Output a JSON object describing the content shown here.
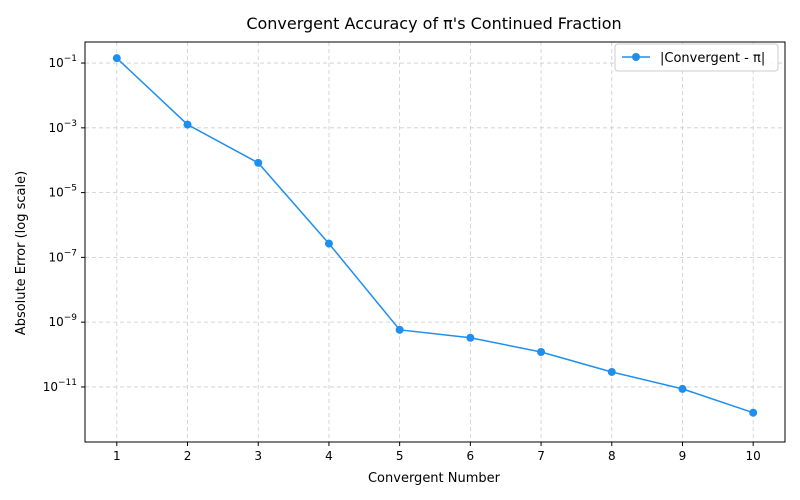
{
  "chart_data": {
    "type": "line",
    "title": "Convergent Accuracy of π's Continued Fraction",
    "xlabel": "Convergent Number",
    "ylabel": "Absolute Error (log scale)",
    "yscale": "log",
    "grid": true,
    "legend_position": "top-right",
    "x": [
      1,
      2,
      3,
      4,
      5,
      6,
      7,
      8,
      9,
      10
    ],
    "xlim": [
      0.55,
      10.45
    ],
    "ylim_log10": [
      -12.7,
      -0.35
    ],
    "x_ticks": [
      "1",
      "2",
      "3",
      "4",
      "5",
      "6",
      "7",
      "8",
      "9",
      "10"
    ],
    "y_ticks": [
      {
        "exp": -1,
        "base": "10",
        "power": "−1"
      },
      {
        "exp": -3,
        "base": "10",
        "power": "−3"
      },
      {
        "exp": -5,
        "base": "10",
        "power": "−5"
      },
      {
        "exp": -7,
        "base": "10",
        "power": "−7"
      },
      {
        "exp": -9,
        "base": "10",
        "power": "−9"
      },
      {
        "exp": -11,
        "base": "10",
        "power": "−11"
      }
    ],
    "series": [
      {
        "name": "|Convergent - π|",
        "color": "#1f8fef",
        "marker": "circle",
        "values": [
          0.1416,
          0.00126,
          8.3e-05,
          2.67e-07,
          5.8e-10,
          3.3e-10,
          1.2e-10,
          2.9e-11,
          8.7e-12,
          1.6e-12
        ]
      }
    ]
  }
}
